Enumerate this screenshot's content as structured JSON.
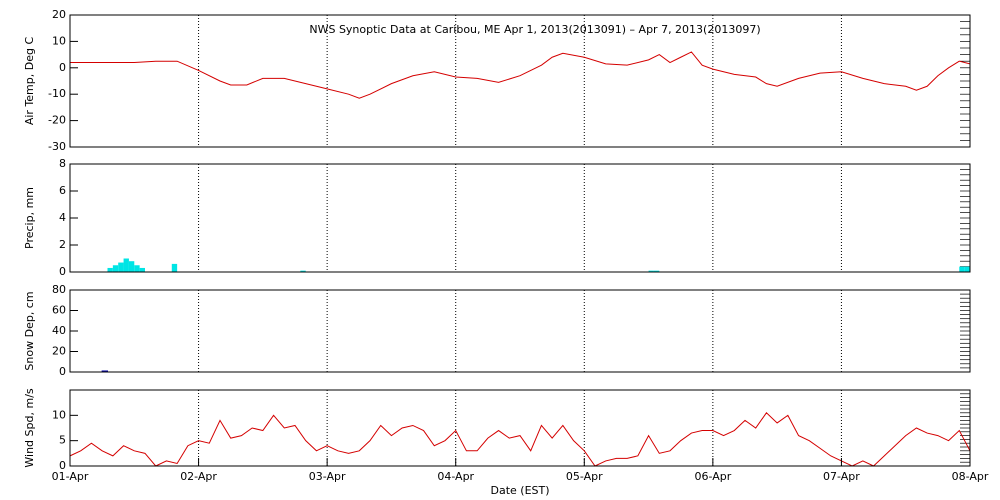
{
  "chart_data": [
    {
      "type": "line",
      "title": "NWS Synoptic Data at Caribou, ME   Apr  1, 2013(2013091) – Apr  7, 2013(2013097)",
      "ylabel": "Air Temp, Deg C",
      "color": "#d40000",
      "x": [
        0,
        4,
        8,
        12,
        16,
        20,
        24,
        28,
        30,
        33,
        36,
        40,
        44,
        48,
        52,
        54,
        56,
        60,
        64,
        68,
        72,
        76,
        80,
        84,
        88,
        90,
        92,
        96,
        100,
        104,
        108,
        110,
        112,
        114,
        116,
        118,
        120,
        124,
        128,
        130,
        132,
        136,
        140,
        144,
        148,
        152,
        156,
        158,
        160,
        162,
        164,
        166,
        168
      ],
      "values": [
        2,
        2,
        2,
        2,
        2.5,
        2.5,
        -1,
        -5,
        -6.5,
        -6.5,
        -4,
        -4,
        -6,
        -8,
        -10,
        -11.5,
        -10,
        -6,
        -3,
        -1.5,
        -3.5,
        -4,
        -5.5,
        -3,
        1,
        4,
        5.5,
        4,
        1.5,
        1,
        3,
        5,
        2,
        4,
        6,
        1,
        -0.5,
        -2.5,
        -3.5,
        -6,
        -7,
        -4,
        -2,
        -1.5,
        -4,
        -6,
        -7,
        -8.5,
        -7,
        -3,
        0,
        2.5,
        1.5
      ],
      "xlim": [
        0,
        168
      ],
      "ylim": [
        -30,
        20
      ],
      "yticks": [
        -30,
        -20,
        -10,
        0,
        10,
        20
      ]
    },
    {
      "type": "bar",
      "ylabel": "Precip, mm",
      "color": "#00e5e5",
      "x": [
        7,
        8,
        9,
        10,
        11,
        12,
        13,
        19,
        43,
        108,
        109,
        166,
        167
      ],
      "values": [
        0.3,
        0.5,
        0.7,
        1.0,
        0.8,
        0.5,
        0.3,
        0.6,
        0.1,
        0.1,
        0.1,
        0.4,
        0.4
      ],
      "xlim": [
        0,
        168
      ],
      "ylim": [
        0,
        8
      ],
      "yticks": [
        0,
        2,
        4,
        6,
        8
      ]
    },
    {
      "type": "outline-bar",
      "ylabel": "Snow Dep, cm",
      "color": "#0000aa",
      "x": [
        6
      ],
      "values": [
        1
      ],
      "xlim": [
        0,
        168
      ],
      "ylim": [
        0,
        80
      ],
      "yticks": [
        0,
        20,
        40,
        60,
        80
      ]
    },
    {
      "type": "line",
      "ylabel": "Wind Spd, m/s",
      "xlabel": "Date (EST)",
      "color": "#d40000",
      "x": [
        0,
        2,
        4,
        6,
        8,
        10,
        12,
        14,
        16,
        18,
        20,
        22,
        24,
        26,
        28,
        30,
        32,
        34,
        36,
        38,
        40,
        42,
        44,
        46,
        48,
        50,
        52,
        54,
        56,
        58,
        60,
        62,
        64,
        66,
        68,
        70,
        72,
        74,
        76,
        78,
        80,
        82,
        84,
        86,
        88,
        90,
        92,
        94,
        96,
        98,
        100,
        102,
        104,
        106,
        108,
        110,
        112,
        114,
        116,
        118,
        120,
        122,
        124,
        126,
        128,
        130,
        132,
        134,
        136,
        138,
        140,
        142,
        144,
        146,
        148,
        150,
        152,
        154,
        156,
        158,
        160,
        162,
        164,
        166,
        168
      ],
      "values": [
        2,
        3,
        4.5,
        3,
        2,
        4,
        3,
        2.5,
        0,
        1,
        0.5,
        4,
        5,
        4.5,
        9,
        5.5,
        6,
        7.5,
        7,
        10,
        7.5,
        8,
        5,
        3,
        4,
        3,
        2.5,
        3,
        5,
        8,
        6,
        7.5,
        8,
        7,
        4,
        5,
        7,
        3,
        3,
        5.5,
        7,
        5.5,
        6,
        3,
        8,
        5.5,
        8,
        5,
        3,
        0,
        1,
        1.5,
        1.5,
        2,
        6,
        2.5,
        3,
        5,
        6.5,
        7,
        7,
        6,
        7,
        9,
        7.5,
        10.5,
        8.5,
        10,
        6,
        5,
        3.5,
        2,
        1,
        0,
        1,
        0,
        2,
        4,
        6,
        7.5,
        6.5,
        6,
        5,
        7,
        3
      ],
      "xlim": [
        0,
        168
      ],
      "ylim": [
        0,
        15
      ],
      "yticks": [
        0,
        5,
        10
      ],
      "xticks": [
        {
          "value": 0,
          "label": "01-Apr"
        },
        {
          "value": 24,
          "label": "02-Apr"
        },
        {
          "value": 48,
          "label": "03-Apr"
        },
        {
          "value": 72,
          "label": "04-Apr"
        },
        {
          "value": 96,
          "label": "05-Apr"
        },
        {
          "value": 120,
          "label": "06-Apr"
        },
        {
          "value": 144,
          "label": "07-Apr"
        },
        {
          "value": 168,
          "label": "08-Apr"
        }
      ]
    }
  ]
}
